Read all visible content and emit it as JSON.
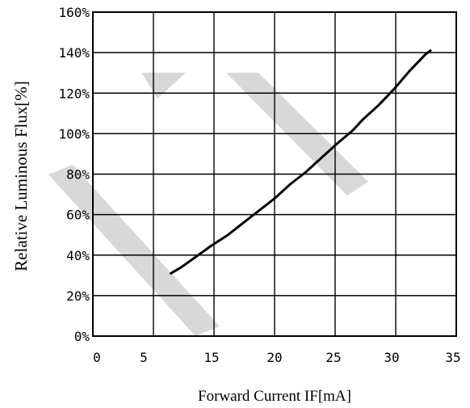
{
  "chart_data": {
    "type": "line",
    "title": "",
    "xlabel": "Forward Current IF[mA]",
    "ylabel": "Relative Luminous Flux[%]",
    "x_ticks": [
      "0",
      "5",
      "15",
      "20",
      "25",
      "30",
      "35"
    ],
    "y_ticks": [
      "0%",
      "20%",
      "40%",
      "60%",
      "80%",
      "100%",
      "120%",
      "140%",
      "160%"
    ],
    "xlim": [
      0,
      35
    ],
    "ylim": [
      0,
      160
    ],
    "grid": true,
    "legend": "none",
    "series": [
      {
        "color": "#000000",
        "x": [
          6.5,
          7.5,
          9.0,
          10.5,
          12.0,
          13.5,
          15.0,
          16.5,
          18.0,
          19.5,
          21.0,
          22.5,
          24.0,
          25.0,
          26.5,
          28.0,
          29.5,
          31.0,
          31.5
        ],
        "y": [
          31,
          34,
          39.5,
          45,
          50,
          56,
          62,
          68,
          75,
          81,
          88,
          95,
          101.5,
          107,
          114,
          122,
          131,
          139,
          141
        ]
      }
    ]
  },
  "watermark": {
    "color": "#d8d8d8"
  }
}
